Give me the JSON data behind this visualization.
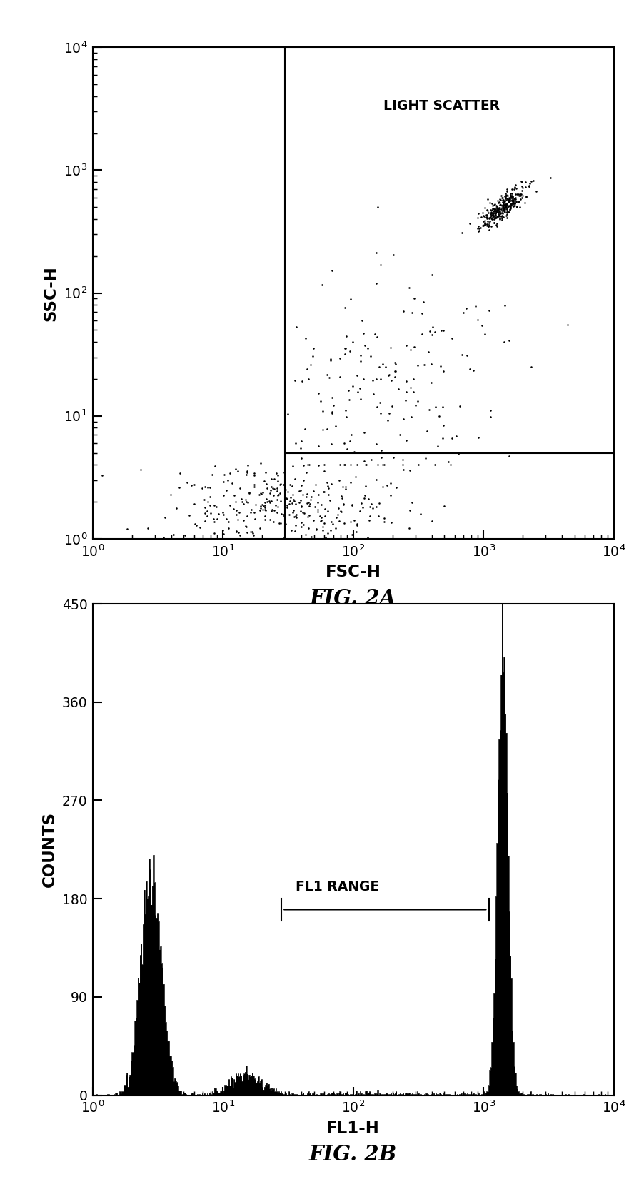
{
  "fig2a": {
    "title": "FIG. 2A",
    "xlabel": "FSC-H",
    "ylabel": "SSC-H",
    "xlim": [
      1,
      10000
    ],
    "ylim": [
      1,
      10000
    ],
    "annotation": "LIGHT SCATTER",
    "gate_x": 30,
    "gate_y": 5,
    "seed_main": 42,
    "seed_low": 123,
    "seed_mid": 999
  },
  "fig2b": {
    "title": "FIG. 2B",
    "xlabel": "FL1-H",
    "ylabel": "COUNTS",
    "xlim": [
      1,
      10000
    ],
    "ylim": [
      0,
      450
    ],
    "yticks": [
      0,
      90,
      180,
      270,
      360,
      450
    ],
    "annotation": "FL1 RANGE",
    "range_x1": 28,
    "range_x2": 1100,
    "range_y": 170,
    "seed": 77
  },
  "background_color": "#ffffff",
  "dot_color": "#000000",
  "line_color": "#000000",
  "hist_color": "#000000"
}
